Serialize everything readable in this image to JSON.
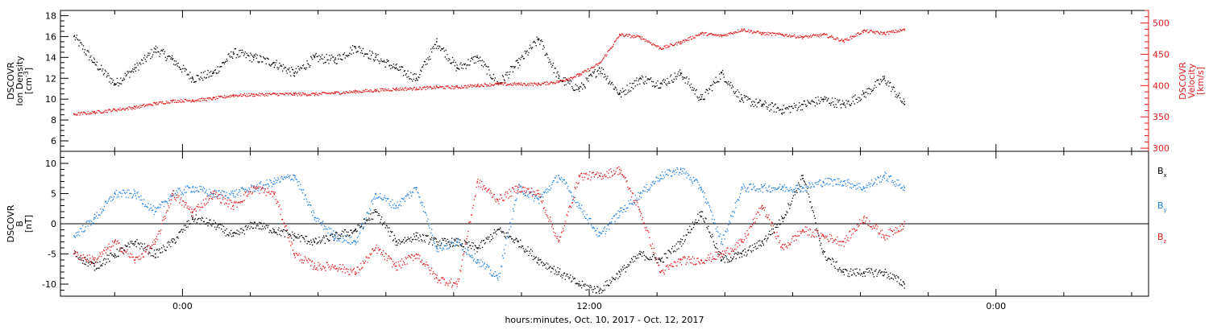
{
  "chart_data": [
    {
      "type": "scatter",
      "panel": "plasma",
      "left_axis": {
        "title_lines": [
          "DSCOVR",
          "Ion Density",
          "[cm^-3]"
        ],
        "range": [
          5,
          18.5
        ],
        "ticks": [
          6,
          8,
          10,
          12,
          14,
          16,
          18
        ],
        "tick_labels": [
          "6",
          "8",
          "10",
          "12",
          "14",
          "16",
          "18"
        ],
        "color": "#000000"
      },
      "right_axis": {
        "title_lines": [
          "DSCOVR",
          "Velocity",
          "[km/s]"
        ],
        "range": [
          295,
          520
        ],
        "ticks": [
          300,
          350,
          400,
          450,
          500
        ],
        "tick_labels": [
          "300",
          "350",
          "400",
          "450",
          "500"
        ],
        "color": "#e31a1c"
      },
      "series": [
        {
          "key": "density",
          "axis": "left",
          "color": "#000000",
          "x": [
            -3.2,
            -2.6,
            -2.0,
            -1.4,
            -0.8,
            -0.3,
            0.3,
            0.9,
            1.5,
            2.1,
            2.7,
            3.3,
            3.9,
            4.5,
            5.1,
            5.7,
            6.3,
            6.9,
            7.5,
            8.1,
            8.7,
            9.3,
            9.9,
            10.5,
            11.1,
            11.7,
            12.3,
            12.9,
            13.5,
            14.1,
            14.7,
            15.3,
            15.9,
            16.5,
            17.1,
            17.7,
            18.3,
            18.9,
            19.5,
            20.1,
            20.7,
            21.3
          ],
          "y": [
            16.0,
            13.5,
            11.5,
            13.0,
            14.8,
            13.8,
            12.0,
            12.5,
            14.5,
            14.0,
            13.5,
            12.5,
            14.0,
            13.8,
            15.0,
            14.0,
            13.0,
            12.0,
            15.5,
            13.0,
            14.0,
            11.5,
            13.5,
            15.8,
            12.0,
            11.0,
            13.0,
            10.5,
            12.0,
            11.5,
            12.5,
            10.0,
            12.5,
            10.0,
            9.5,
            9.0,
            9.5,
            10.0,
            9.5,
            10.5,
            12.0,
            9.5
          ]
        },
        {
          "key": "velocity",
          "axis": "right",
          "color": "#e31a1c",
          "x": [
            -3.2,
            -2.6,
            -2.0,
            -1.4,
            -0.8,
            -0.3,
            0.3,
            0.9,
            1.5,
            2.1,
            2.7,
            3.3,
            3.9,
            4.5,
            5.1,
            5.7,
            6.3,
            6.9,
            7.5,
            8.1,
            8.7,
            9.3,
            9.9,
            10.5,
            11.1,
            11.7,
            12.3,
            12.9,
            13.5,
            14.1,
            14.7,
            15.3,
            15.9,
            16.5,
            17.1,
            17.7,
            18.3,
            18.9,
            19.5,
            20.1,
            20.7,
            21.3
          ],
          "y": [
            355,
            358,
            362,
            366,
            372,
            376,
            377,
            380,
            385,
            386,
            387,
            387,
            387,
            389,
            391,
            393,
            395,
            396,
            398,
            398,
            401,
            403,
            403,
            403,
            407,
            418,
            436,
            482,
            478,
            460,
            470,
            484,
            480,
            490,
            484,
            482,
            478,
            482,
            472,
            488,
            484,
            490
          ]
        }
      ]
    },
    {
      "type": "scatter",
      "panel": "magnetic-field",
      "left_axis": {
        "title_lines": [
          "DSCOVR",
          "B",
          "[nT]"
        ],
        "range": [
          -12,
          12
        ],
        "ticks": [
          -10,
          -5,
          0,
          5,
          10
        ],
        "tick_labels": [
          "-10",
          "-5",
          "0",
          "5",
          "10"
        ],
        "color": "#000000"
      },
      "legend": [
        {
          "label": "Bx",
          "color": "#000000"
        },
        {
          "label": "By",
          "color": "#1f7fe0"
        },
        {
          "label": "Bz",
          "color": "#e31a1c"
        }
      ],
      "series": [
        {
          "key": "Bx",
          "color": "#000000",
          "x": [
            -3.2,
            -2.6,
            -2.0,
            -1.4,
            -0.8,
            -0.3,
            0.3,
            0.9,
            1.5,
            2.1,
            2.7,
            3.3,
            3.9,
            4.5,
            5.1,
            5.7,
            6.3,
            6.9,
            7.5,
            8.1,
            8.7,
            9.3,
            9.9,
            10.5,
            11.1,
            11.7,
            12.3,
            12.9,
            13.5,
            14.1,
            14.7,
            15.3,
            15.9,
            16.5,
            17.1,
            17.7,
            18.3,
            18.9,
            19.5,
            20.1,
            20.7,
            21.3
          ],
          "y": [
            -5,
            -7,
            -5,
            -3,
            -5,
            -3,
            1,
            0,
            -2,
            0,
            -1,
            -2,
            -3,
            -2,
            -1,
            2,
            -3,
            -2,
            -3,
            -3,
            -4,
            -1,
            -3,
            -6,
            -8,
            -10,
            -11,
            -8,
            -5,
            -6,
            -3,
            2,
            -6,
            -5,
            -3,
            1,
            8,
            -5,
            -8,
            -8,
            -8,
            -10
          ]
        },
        {
          "key": "By",
          "color": "#1f7fe0",
          "x": [
            -3.2,
            -2.6,
            -2.0,
            -1.4,
            -0.8,
            -0.3,
            0.3,
            0.9,
            1.5,
            2.1,
            2.7,
            3.3,
            3.9,
            4.5,
            5.1,
            5.7,
            6.3,
            6.9,
            7.5,
            8.1,
            8.7,
            9.3,
            9.9,
            10.5,
            11.1,
            11.7,
            12.3,
            12.9,
            13.5,
            14.1,
            14.7,
            15.3,
            15.9,
            16.5,
            17.1,
            17.7,
            18.3,
            18.9,
            19.5,
            20.1,
            20.7,
            21.3
          ],
          "y": [
            -2,
            1,
            5,
            5,
            2,
            5,
            6,
            5,
            5,
            6,
            7,
            8,
            1,
            -2,
            -3,
            5,
            3,
            6,
            -4,
            -3,
            -6,
            -9,
            6,
            4,
            8,
            3,
            -2,
            2,
            5,
            8,
            9,
            6,
            -3,
            6,
            6,
            6,
            6,
            7,
            7,
            6,
            8,
            6
          ]
        },
        {
          "key": "Bz",
          "color": "#e31a1c",
          "x": [
            -3.2,
            -2.6,
            -2.0,
            -1.4,
            -0.8,
            -0.3,
            0.3,
            0.9,
            1.5,
            2.1,
            2.7,
            3.3,
            3.9,
            4.5,
            5.1,
            5.7,
            6.3,
            6.9,
            7.5,
            8.1,
            8.7,
            9.3,
            9.9,
            10.5,
            11.1,
            11.7,
            12.3,
            12.9,
            13.5,
            14.1,
            14.7,
            15.3,
            15.9,
            16.5,
            17.1,
            17.7,
            18.3,
            18.9,
            19.5,
            20.1,
            20.7,
            21.3
          ],
          "y": [
            -5,
            -6,
            -3,
            -6,
            -3,
            5,
            2,
            5,
            3,
            6,
            5,
            -5,
            -7,
            -7,
            -8,
            -4,
            -7,
            -5,
            -9,
            -10,
            7,
            4,
            6,
            5,
            -3,
            8,
            8,
            9,
            2,
            -8,
            -6,
            -6,
            -5,
            -3,
            3,
            -4,
            -1,
            -2,
            -3,
            1,
            -2,
            0
          ]
        }
      ]
    }
  ],
  "x_axis": {
    "range": [
      -3.6,
      28.5
    ],
    "major_ticks": [
      0,
      12,
      24
    ],
    "tick_labels": [
      "0:00",
      "12:00",
      "0:00"
    ],
    "minor_step": 2,
    "title": "hours:minutes, Oct. 10, 2017 - Oct. 12, 2017"
  }
}
